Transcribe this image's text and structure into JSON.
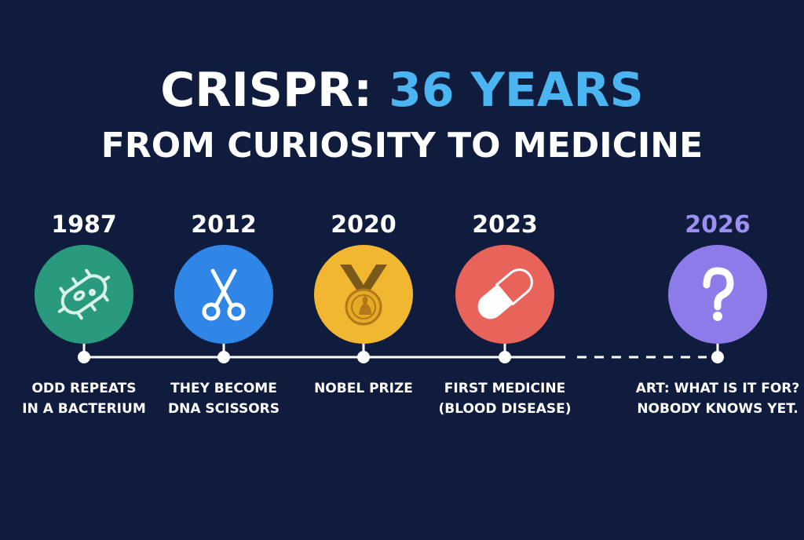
{
  "header": {
    "title_part1": "CRISPR:",
    "title_highlight": "36 YEARS",
    "subtitle": "FROM CURIOSITY TO MEDICINE"
  },
  "events": [
    {
      "year": "1987",
      "lines": [
        "ODD REPEATS",
        "IN A BACTERIUM"
      ]
    },
    {
      "year": "2012",
      "lines": [
        "THEY BECOME",
        "DNA SCISSORS"
      ]
    },
    {
      "year": "2020",
      "lines": [
        "NOBEL PRIZE"
      ]
    },
    {
      "year": "2023",
      "lines": [
        "FIRST MEDICINE",
        "(BLOOD DISEASE)"
      ]
    },
    {
      "year": "2026",
      "lines": [
        "ART: WHAT IS IT FOR?",
        "NOBODY KNOWS YET."
      ]
    }
  ]
}
